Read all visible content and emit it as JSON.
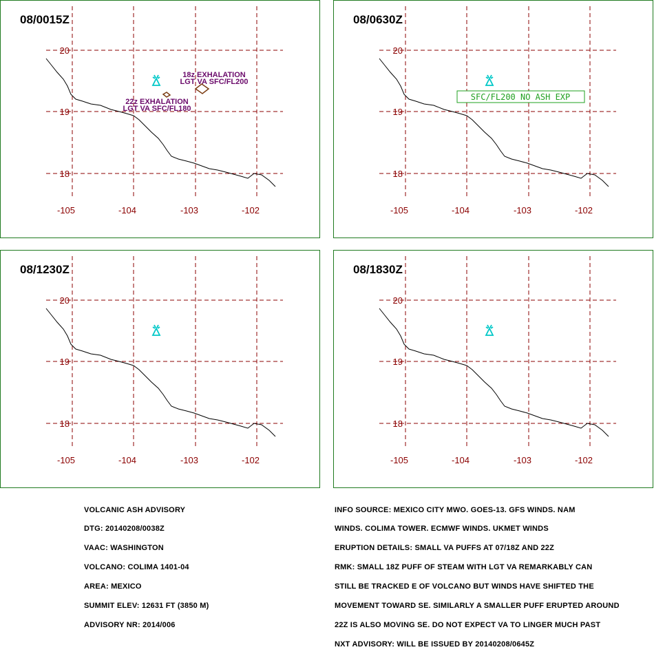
{
  "panels": [
    {
      "title": "08/0015Z",
      "labels": [
        {
          "line1": "18z EXHALATION",
          "line2": "LGT VA SFC/FL200"
        },
        {
          "line1": "22z EXHALATION",
          "line2": "LGT VA SFC/FL180"
        }
      ]
    },
    {
      "title": "08/0630Z",
      "box": "SFC/FL200 NO ASH EXP"
    },
    {
      "title": "08/1230Z"
    },
    {
      "title": "08/1830Z"
    }
  ],
  "axes": {
    "lat_ticks": [
      "20",
      "19",
      "18"
    ],
    "lon_ticks": [
      "-105",
      "-104",
      "-103",
      "-102"
    ]
  },
  "colors": {
    "grid": "#8b0000",
    "frame": "#1f7a1f",
    "volcano": "#00c8c8",
    "label": "#6b0a6b",
    "ash_polygon": "#7a3a10",
    "no_ash_box": "#1fa01f"
  },
  "volcano_icon": "volcano-icon",
  "advisory_left": [
    "VOLCANIC ASH ADVISORY",
    "DTG: 20140208/0038Z",
    "VAAC: WASHINGTON",
    "VOLCANO: COLIMA 1401-04",
    "AREA: MEXICO",
    "SUMMIT ELEV: 12631 FT (3850 M)",
    "ADVISORY NR: 2014/006"
  ],
  "advisory_right": [
    "INFO SOURCE: MEXICO CITY MWO. GOES-13. GFS WINDS. NAM",
    "WINDS. COLIMA TOWER. ECMWF WINDS. UKMET WINDS",
    "ERUPTION DETAILS: SMALL VA PUFFS AT 07/18Z AND 22Z",
    "RMK: SMALL 18Z PUFF OF STEAM WITH LGT VA REMARKABLY CAN",
    "STILL BE TRACKED E OF VOLCANO BUT WINDS HAVE SHIFTED THE",
    "MOVEMENT TOWARD SE. SIMILARLY A SMALLER PUFF ERUPTED AROUND",
    "22Z IS ALSO MOVING SE. DO NOT EXPECT VA TO LINGER MUCH PAST",
    "NXT ADVISORY: WILL BE ISSUED BY 20140208/0645Z"
  ]
}
